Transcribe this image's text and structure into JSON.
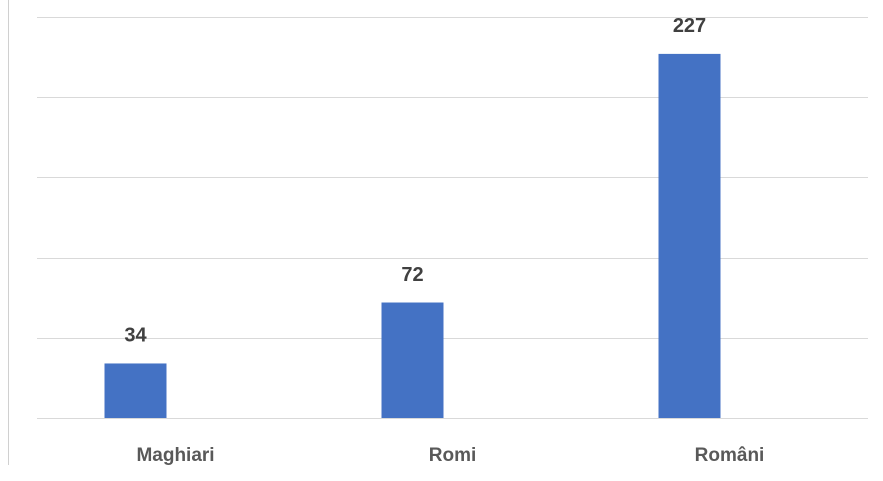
{
  "chart_data": {
    "type": "bar",
    "categories": [
      "Maghiari",
      "Romi",
      "Români"
    ],
    "values": [
      34,
      72,
      227
    ],
    "color": "#4472c4",
    "ylim": [
      0,
      250
    ],
    "yticks": [
      0,
      50,
      100,
      150,
      200,
      250
    ],
    "grid": true
  }
}
